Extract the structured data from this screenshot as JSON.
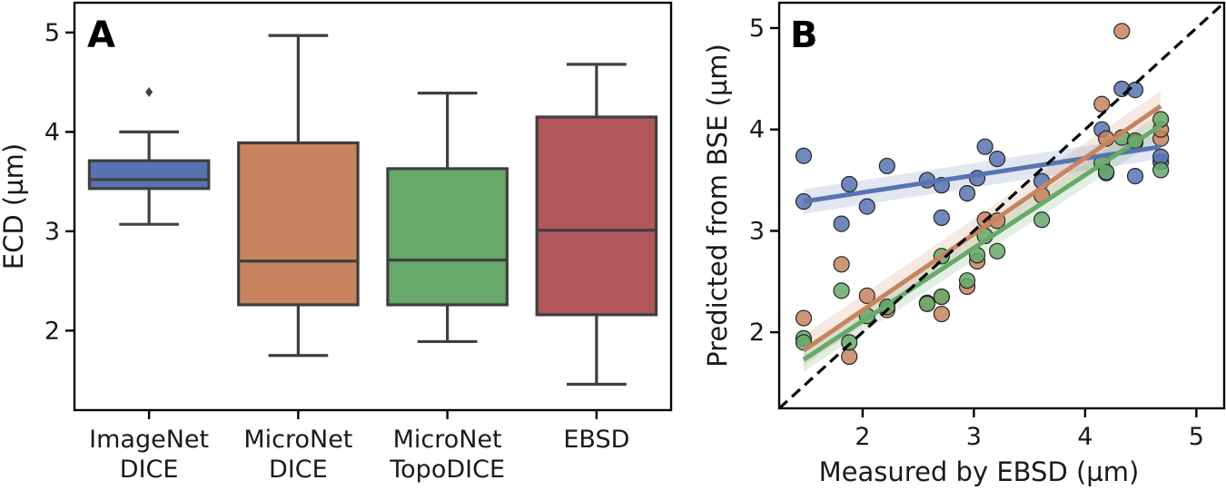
{
  "chart_data": [
    {
      "panel": "A",
      "type": "box",
      "ylabel": "ECD (µm)",
      "ylim": [
        1.2,
        5.3
      ],
      "yticks": [
        2,
        3,
        4,
        5
      ],
      "categories": [
        "ImageNet\nDICE",
        "MicroNet\nDICE",
        "MicroNet\nTopoDICE",
        "EBSD"
      ],
      "boxes": [
        {
          "whisker_low": 3.07,
          "q1": 3.43,
          "median": 3.52,
          "q3": 3.71,
          "whisker_high": 4.0,
          "outliers": [
            4.4
          ],
          "color": "#5873b1"
        },
        {
          "whisker_low": 1.75,
          "q1": 2.26,
          "median": 2.7,
          "q3": 3.89,
          "whisker_high": 4.97,
          "outliers": [],
          "color": "#c7845e"
        },
        {
          "whisker_low": 1.89,
          "q1": 2.26,
          "median": 2.71,
          "q3": 3.63,
          "whisker_high": 4.39,
          "outliers": [],
          "color": "#66a96a"
        },
        {
          "whisker_low": 1.46,
          "q1": 2.16,
          "median": 3.01,
          "q3": 4.15,
          "whisker_high": 4.68,
          "outliers": [],
          "color": "#b2575c"
        }
      ]
    },
    {
      "panel": "B",
      "type": "scatter",
      "xlabel": "Measured by EBSD (µm)",
      "ylabel": "Predicted from BSE (µm)",
      "xlim": [
        1.25,
        5.25
      ],
      "ylim": [
        1.25,
        5.25
      ],
      "xticks": [
        2,
        3,
        4,
        5
      ],
      "yticks": [
        2,
        3,
        4,
        5
      ],
      "reference_line": {
        "from": [
          1.25,
          1.25
        ],
        "to": [
          5.25,
          5.25
        ],
        "style": "dashed",
        "color": "#000000"
      },
      "series": [
        {
          "color": "#5873b1",
          "fit": {
            "from": [
              1.47,
              3.29
            ],
            "to": [
              4.68,
              3.83
            ]
          },
          "points": [
            [
              1.47,
              3.74
            ],
            [
              1.47,
              3.29
            ],
            [
              1.81,
              3.07
            ],
            [
              1.88,
              3.46
            ],
            [
              2.04,
              3.24
            ],
            [
              2.22,
              3.64
            ],
            [
              2.58,
              3.5
            ],
            [
              2.71,
              3.13
            ],
            [
              2.71,
              3.45
            ],
            [
              2.94,
              3.37
            ],
            [
              3.03,
              3.52
            ],
            [
              3.1,
              3.83
            ],
            [
              3.21,
              3.71
            ],
            [
              3.61,
              3.49
            ],
            [
              4.15,
              4.0
            ],
            [
              4.19,
              3.57
            ],
            [
              4.33,
              4.4
            ],
            [
              4.45,
              3.54
            ],
            [
              4.45,
              4.39
            ],
            [
              4.68,
              3.68
            ],
            [
              4.68,
              3.73
            ]
          ]
        },
        {
          "color": "#c7845e",
          "fit": {
            "from": [
              1.47,
              1.82
            ],
            "to": [
              4.68,
              4.23
            ]
          },
          "points": [
            [
              1.47,
              2.14
            ],
            [
              1.81,
              2.67
            ],
            [
              1.88,
              1.76
            ],
            [
              2.04,
              2.36
            ],
            [
              2.22,
              2.22
            ],
            [
              2.58,
              2.29
            ],
            [
              2.71,
              2.18
            ],
            [
              2.71,
              2.35
            ],
            [
              2.94,
              2.45
            ],
            [
              3.03,
              2.7
            ],
            [
              3.1,
              3.11
            ],
            [
              3.21,
              3.1
            ],
            [
              3.61,
              3.35
            ],
            [
              4.15,
              4.25
            ],
            [
              4.19,
              3.91
            ],
            [
              4.33,
              4.97
            ],
            [
              4.45,
              3.87
            ],
            [
              4.68,
              3.91
            ],
            [
              4.68,
              4.0
            ]
          ]
        },
        {
          "color": "#66a96a",
          "fit": {
            "from": [
              1.47,
              1.73
            ],
            "to": [
              4.68,
              4.04
            ]
          },
          "points": [
            [
              1.47,
              1.94
            ],
            [
              1.47,
              1.9
            ],
            [
              1.81,
              2.41
            ],
            [
              1.88,
              1.9
            ],
            [
              2.04,
              2.16
            ],
            [
              2.22,
              2.25
            ],
            [
              2.58,
              2.28
            ],
            [
              2.71,
              2.35
            ],
            [
              2.71,
              2.75
            ],
            [
              2.94,
              2.51
            ],
            [
              3.03,
              2.76
            ],
            [
              3.1,
              2.95
            ],
            [
              3.21,
              2.8
            ],
            [
              3.61,
              3.11
            ],
            [
              4.15,
              3.67
            ],
            [
              4.19,
              3.58
            ],
            [
              4.33,
              3.92
            ],
            [
              4.45,
              3.89
            ],
            [
              4.68,
              4.1
            ],
            [
              4.68,
              3.6
            ]
          ]
        }
      ]
    }
  ]
}
